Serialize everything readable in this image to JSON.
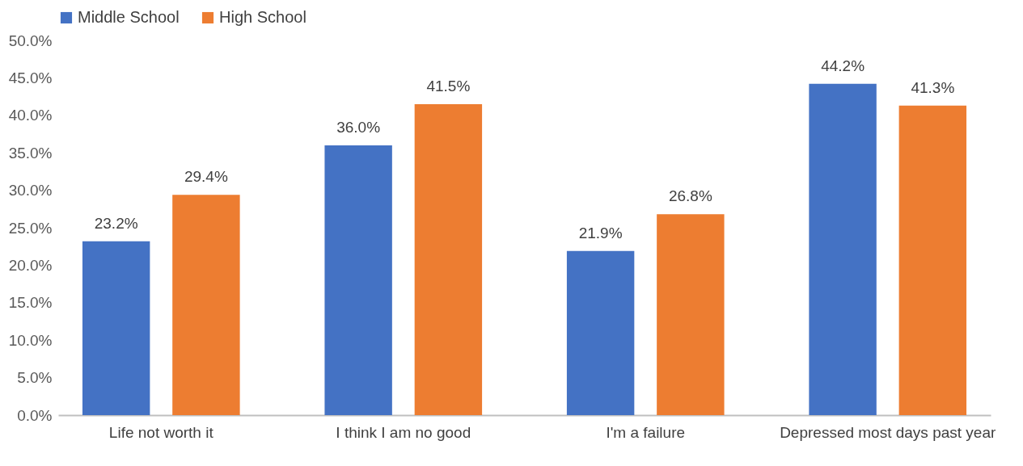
{
  "chart_data": {
    "type": "bar",
    "categories": [
      "Life not worth it",
      "I think I am no good",
      "I'm a failure",
      "Depressed most days past year"
    ],
    "series": [
      {
        "name": "Middle School",
        "color": "#4472c4",
        "values": [
          23.2,
          36.0,
          21.9,
          44.2
        ],
        "value_labels": [
          "23.2%",
          "36.0%",
          "21.9%",
          "44.2%"
        ]
      },
      {
        "name": "High School",
        "color": "#ed7d31",
        "values": [
          29.4,
          41.5,
          26.8,
          41.3
        ],
        "value_labels": [
          "29.4%",
          "41.5%",
          "26.8%",
          "41.3%"
        ]
      }
    ],
    "ylim": [
      0,
      50
    ],
    "yticks": [
      {
        "value": 0,
        "label": "0.0%"
      },
      {
        "value": 5,
        "label": "5.0%"
      },
      {
        "value": 10,
        "label": "10.0%"
      },
      {
        "value": 15,
        "label": "15.0%"
      },
      {
        "value": 20,
        "label": "20.0%"
      },
      {
        "value": 25,
        "label": "25.0%"
      },
      {
        "value": 30,
        "label": "30.0%"
      },
      {
        "value": 35,
        "label": "35.0%"
      },
      {
        "value": 40,
        "label": "40.0%"
      },
      {
        "value": 45,
        "label": "45.0%"
      },
      {
        "value": 50,
        "label": "50.0%"
      }
    ],
    "grid": false,
    "legend": "top"
  }
}
